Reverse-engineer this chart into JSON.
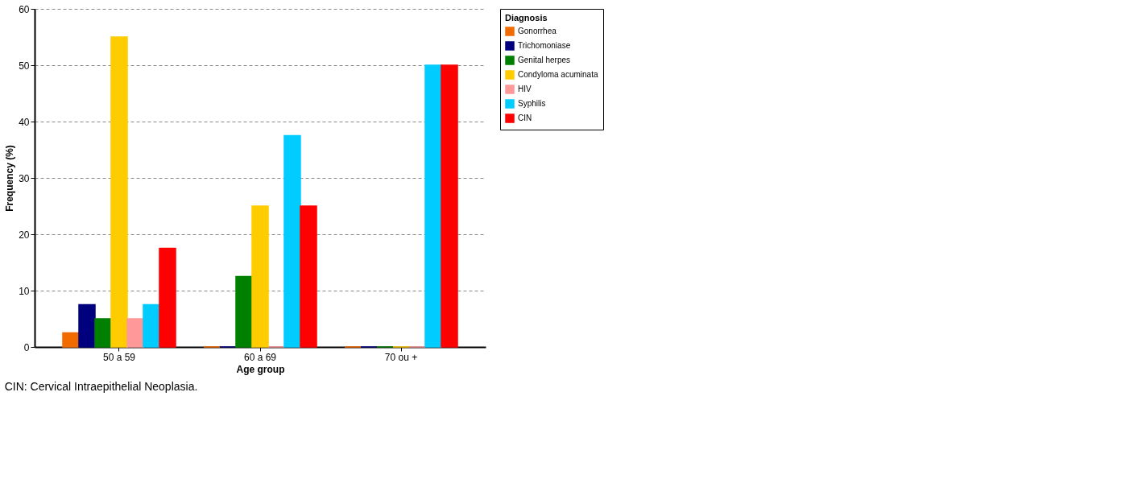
{
  "chart_data": {
    "type": "bar",
    "categories": [
      "50 a 59",
      "60 a 69",
      "70 ou +"
    ],
    "series": [
      {
        "name": "Gonorrhea",
        "color": "#f26b00",
        "values": [
          2.5,
          0,
          0
        ]
      },
      {
        "name": "Trichomoniase",
        "color": "#00007f",
        "values": [
          7.5,
          0,
          0
        ]
      },
      {
        "name": "Genital herpes",
        "color": "#008000",
        "values": [
          5,
          12.5,
          0
        ]
      },
      {
        "name": "Condyloma acuminata",
        "color": "#ffcc00",
        "values": [
          55,
          25,
          0
        ]
      },
      {
        "name": "HIV",
        "color": "#ff9999",
        "values": [
          5,
          0,
          0
        ]
      },
      {
        "name": "Syphilis",
        "color": "#00ccff",
        "values": [
          7.5,
          37.5,
          50
        ]
      },
      {
        "name": "CIN",
        "color": "#ff0000",
        "values": [
          17.5,
          25,
          50
        ]
      }
    ],
    "xlabel": "Age group",
    "ylabel": "Frequency (%)",
    "legend_title": "Diagnosis",
    "legend": "right",
    "ylim": [
      0,
      60
    ],
    "yticks": [
      0,
      10,
      20,
      30,
      40,
      50,
      60
    ],
    "grid": "y",
    "annotations": [
      "CIN: Cervical Intraepithelial Neoplasia."
    ]
  }
}
